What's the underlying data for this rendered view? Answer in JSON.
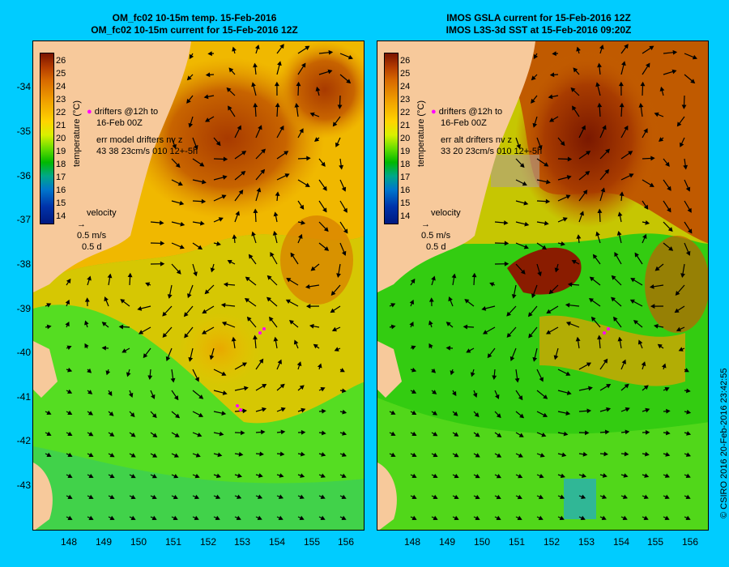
{
  "left": {
    "title1": "OM_fc02 10-15m temp. 15-Feb-2016",
    "title2": "OM_fc02 10-15m current for 15-Feb-2016 12Z",
    "drifters_line1": "drifters @12h to",
    "drifters_line2": "16-Feb 00Z",
    "err_line1": "err model drifters nv z",
    "err_line2": "43 38 23cm/s 010 12+-5h"
  },
  "right": {
    "title1": "IMOS GSLA current for 15-Feb-2016 12Z",
    "title2": "IMOS L3S-3d SST at 15-Feb-2016 09:20Z",
    "drifters_line1": "drifters @12h to",
    "drifters_line2": "16-Feb 00Z",
    "err_line1": "err alt drifters nv z",
    "err_line2": "33 20 23cm/s 010 12+-5h"
  },
  "legend": {
    "velocity": "velocity",
    "speed": "0.5 m/s",
    "duration": "0.5 d"
  },
  "colorbar": {
    "title": "temperature (°C)",
    "ticks": [
      "26",
      "25",
      "24",
      "23",
      "22",
      "21",
      "20",
      "19",
      "18",
      "17",
      "16",
      "15",
      "14"
    ]
  },
  "axes": {
    "lat_ticks": [
      "-34",
      "-35",
      "-36",
      "-37",
      "-38",
      "-39",
      "-40",
      "-41",
      "-42",
      "-43"
    ],
    "lon_ticks": [
      "148",
      "149",
      "150",
      "151",
      "152",
      "153",
      "154",
      "155",
      "156"
    ]
  },
  "credit": "© CSIRO 2016   20-Feb-2016 23:42:55",
  "colors": {
    "background": "#00ccff",
    "land": "#f7c99b",
    "warm": "#c05000",
    "cool": "#33dd00"
  }
}
